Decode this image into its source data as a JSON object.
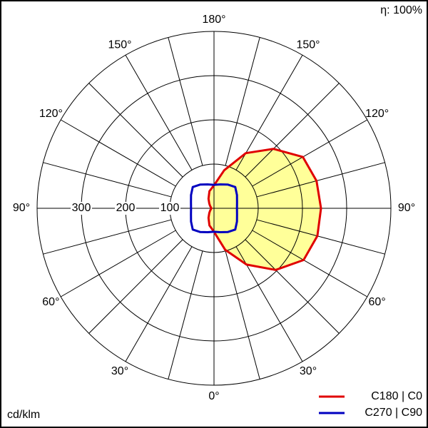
{
  "chart_data": {
    "type": "polar",
    "efficiency_label": "η: 100%",
    "unit_label": "cd/klm",
    "rlim": [
      0,
      400
    ],
    "rticks": [
      100,
      200,
      300
    ],
    "angle_ticks": [
      {
        "value": 0,
        "label": "0°"
      },
      {
        "value": 30,
        "label": "30°"
      },
      {
        "value": 60,
        "label": "60°"
      },
      {
        "value": 90,
        "label": "90°"
      },
      {
        "value": 120,
        "label": "120°"
      },
      {
        "value": 150,
        "label": "150°"
      },
      {
        "value": 180,
        "label": "180°"
      }
    ],
    "angles": [
      0,
      15,
      30,
      45,
      60,
      75,
      90,
      105,
      120,
      135,
      150,
      165,
      180
    ],
    "series": [
      {
        "name": "C180 | C0",
        "color": "#e00000",
        "fill": "#ffff99",
        "values": [
          53,
          97,
          147,
          197,
          234,
          242,
          242,
          240,
          232,
          190,
          144,
          89,
          52
        ],
        "values_opposite": [
          53,
          40,
          25,
          15,
          10,
          7,
          6,
          7,
          10,
          15,
          25,
          40,
          52
        ]
      },
      {
        "name": "C270 | C90",
        "color": "#0000c0",
        "values": [
          53,
          56,
          62,
          68,
          60,
          54,
          52,
          54,
          60,
          68,
          62,
          56,
          53
        ],
        "values_opposite": [
          53,
          56,
          62,
          68,
          60,
          54,
          52,
          54,
          60,
          68,
          62,
          56,
          53
        ]
      }
    ]
  }
}
